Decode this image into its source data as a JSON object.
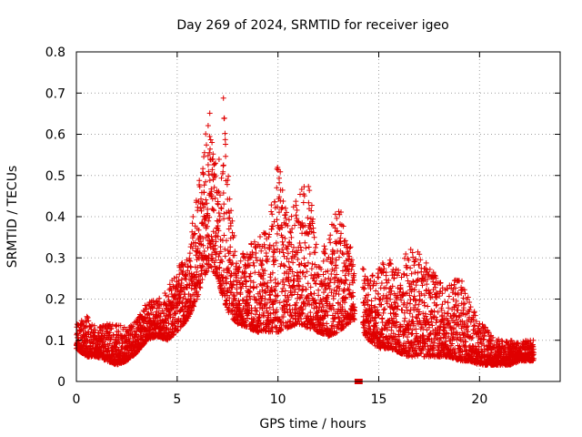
{
  "chart_data": {
    "type": "scatter",
    "title": "Day 269 of 2024, SRMTID for receiver igeo",
    "xlabel": "GPS time / hours",
    "ylabel": "SRMTID / TECUs",
    "xlim": [
      0,
      24
    ],
    "ylim": [
      0,
      0.8
    ],
    "x_ticks": [
      0,
      5,
      10,
      15,
      20
    ],
    "x_tick_labels": [
      "0",
      "5",
      "10",
      "15",
      "20"
    ],
    "y_ticks": [
      0,
      0.1,
      0.2,
      0.3,
      0.4,
      0.5,
      0.6,
      0.7,
      0.8
    ],
    "y_tick_labels": [
      "0",
      "0.1",
      "0.2",
      "0.3",
      "0.4",
      "0.5",
      "0.6",
      "0.7",
      "0.8"
    ],
    "grid": true,
    "marker": "+",
    "color": "#e00000",
    "gap_marker": {
      "x_start": 13.8,
      "x_end": 14.2,
      "y": 0
    },
    "series": [
      {
        "name": "SRMTID",
        "envelope": {
          "x": [
            0.0,
            0.5,
            1.0,
            1.5,
            2.0,
            2.5,
            3.0,
            3.5,
            4.0,
            4.5,
            5.0,
            5.5,
            6.0,
            6.3,
            6.6,
            7.0,
            7.3,
            7.6,
            8.0,
            8.5,
            9.0,
            9.5,
            10.0,
            10.5,
            11.0,
            11.5,
            12.0,
            12.5,
            13.0,
            13.5,
            13.8,
            14.5,
            15.0,
            15.5,
            16.0,
            16.5,
            17.0,
            17.5,
            18.0,
            18.5,
            19.0,
            19.5,
            20.0,
            20.5,
            21.0,
            21.5,
            22.0,
            22.7
          ],
          "low": [
            0.08,
            0.06,
            0.06,
            0.05,
            0.04,
            0.05,
            0.07,
            0.1,
            0.11,
            0.1,
            0.12,
            0.15,
            0.2,
            0.25,
            0.28,
            0.25,
            0.2,
            0.16,
            0.14,
            0.13,
            0.12,
            0.12,
            0.12,
            0.13,
            0.14,
            0.13,
            0.12,
            0.11,
            0.12,
            0.14,
            0.15,
            0.1,
            0.08,
            0.08,
            0.07,
            0.06,
            0.06,
            0.06,
            0.06,
            0.06,
            0.05,
            0.05,
            0.04,
            0.04,
            0.04,
            0.04,
            0.05,
            0.05
          ],
          "high": [
            0.15,
            0.16,
            0.13,
            0.14,
            0.14,
            0.13,
            0.15,
            0.2,
            0.2,
            0.22,
            0.28,
            0.3,
            0.48,
            0.55,
            0.69,
            0.5,
            0.7,
            0.45,
            0.3,
            0.33,
            0.35,
            0.38,
            0.54,
            0.4,
            0.45,
            0.5,
            0.3,
            0.35,
            0.44,
            0.33,
            0.32,
            0.25,
            0.28,
            0.3,
            0.27,
            0.33,
            0.32,
            0.28,
            0.25,
            0.25,
            0.26,
            0.2,
            0.15,
            0.12,
            0.1,
            0.1,
            0.1,
            0.1
          ]
        }
      }
    ]
  }
}
